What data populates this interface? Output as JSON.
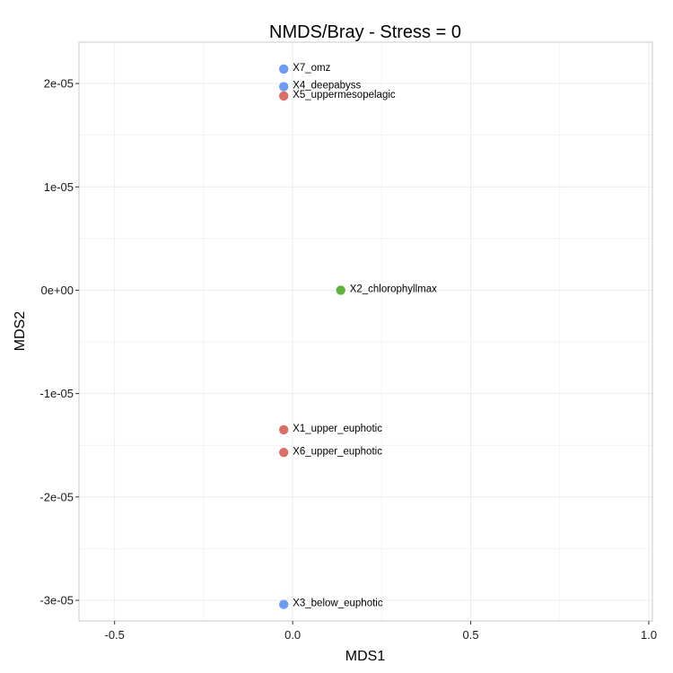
{
  "chart_data": {
    "type": "scatter",
    "title": "NMDS/Bray - Stress = 0",
    "xlabel": "MDS1",
    "ylabel": "MDS2",
    "xlim": [
      -0.6,
      1.01
    ],
    "ylim": [
      -3.2e-05,
      2.4e-05
    ],
    "x_ticks": [
      {
        "value": -0.5,
        "label": "-0.5"
      },
      {
        "value": 0.0,
        "label": "0.0"
      },
      {
        "value": 0.5,
        "label": "0.5"
      },
      {
        "value": 1.0,
        "label": "1.0"
      }
    ],
    "y_ticks": [
      {
        "value": -3e-05,
        "label": "-3e-05"
      },
      {
        "value": -2e-05,
        "label": "-2e-05"
      },
      {
        "value": -1e-05,
        "label": "-1e-05"
      },
      {
        "value": 0,
        "label": "0e+00"
      },
      {
        "value": 1e-05,
        "label": "1e-05"
      },
      {
        "value": 2e-05,
        "label": "2e-05"
      }
    ],
    "grid": true,
    "legend": "none",
    "colors": {
      "red": "#d86f68",
      "green": "#62b042",
      "blue": "#6f9cf2",
      "panel_border": "#c8c8c8",
      "grid": "#ececec"
    },
    "points": [
      {
        "label": "X7_omz",
        "x": -0.025,
        "y": 2.14e-05,
        "color": "blue"
      },
      {
        "label": "X4_deepabyss",
        "x": -0.025,
        "y": 1.97e-05,
        "color": "blue"
      },
      {
        "label": "X5_uppermesopelagic",
        "x": -0.025,
        "y": 1.88e-05,
        "color": "red"
      },
      {
        "label": "X2_chlorophyllmax",
        "x": 0.135,
        "y": 0.0,
        "color": "green"
      },
      {
        "label": "X1_upper_euphotic",
        "x": -0.025,
        "y": -1.35e-05,
        "color": "red"
      },
      {
        "label": "X6_upper_euphotic",
        "x": -0.025,
        "y": -1.57e-05,
        "color": "red"
      },
      {
        "label": "X3_below_euphotic",
        "x": -0.025,
        "y": -3.04e-05,
        "color": "blue"
      }
    ]
  }
}
